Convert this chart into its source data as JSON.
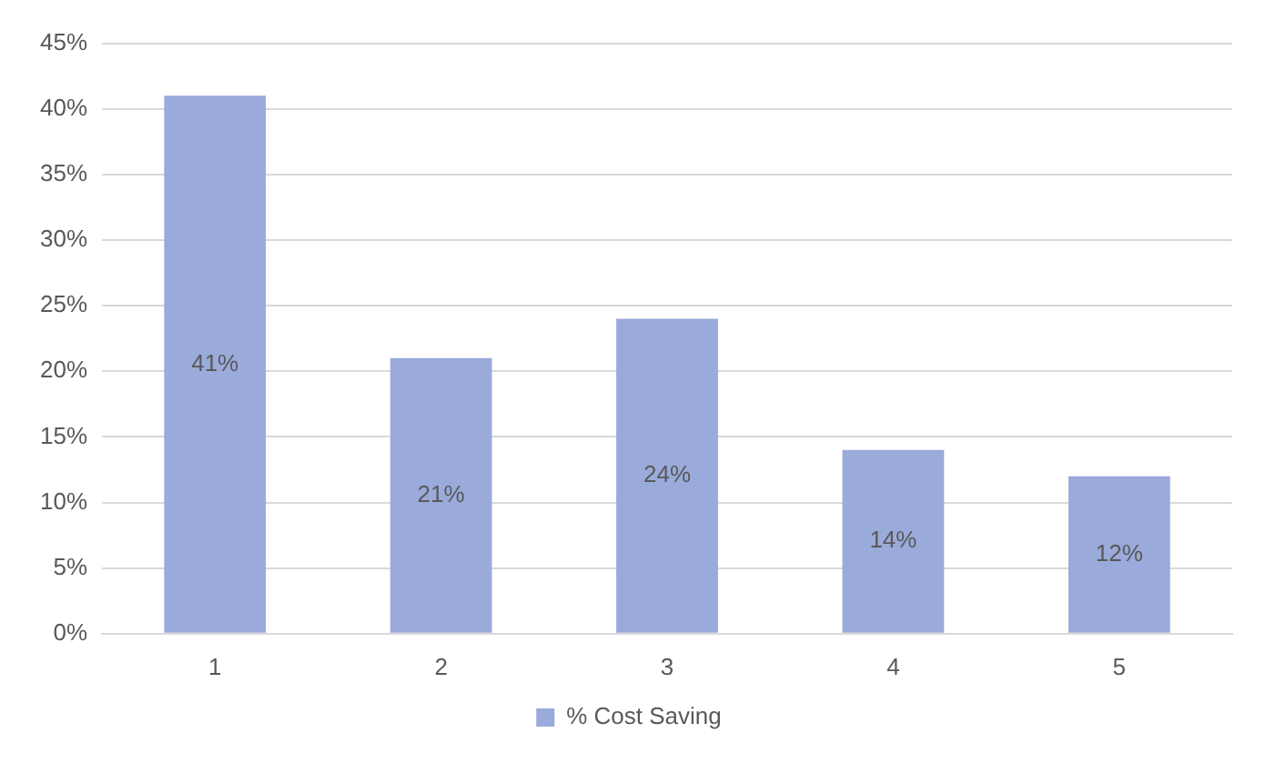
{
  "chart_data": {
    "type": "bar",
    "categories": [
      "1",
      "2",
      "3",
      "4",
      "5"
    ],
    "series": [
      {
        "name": "% Cost Saving",
        "color": "#9aaadb",
        "values": [
          41,
          21,
          24,
          14,
          12
        ],
        "value_labels": [
          "41%",
          "21%",
          "24%",
          "14%",
          "12%"
        ]
      }
    ],
    "ylim": [
      0,
      45
    ],
    "yticks": [
      {
        "value": 0,
        "label": "0%"
      },
      {
        "value": 5,
        "label": "5%"
      },
      {
        "value": 10,
        "label": "10%"
      },
      {
        "value": 15,
        "label": "15%"
      },
      {
        "value": 20,
        "label": "20%"
      },
      {
        "value": 25,
        "label": "25%"
      },
      {
        "value": 30,
        "label": "30%"
      },
      {
        "value": 35,
        "label": "35%"
      },
      {
        "value": 40,
        "label": "40%"
      },
      {
        "value": 45,
        "label": "45%"
      }
    ],
    "grid": "y",
    "legend": "bottom"
  }
}
